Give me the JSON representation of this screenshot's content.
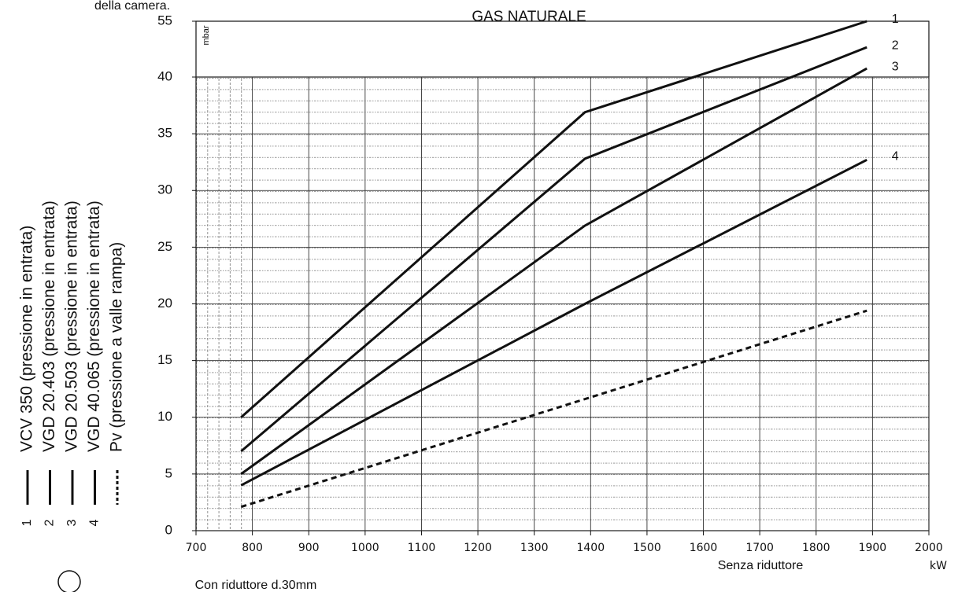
{
  "chart_data": {
    "type": "line",
    "title": "GAS NATURALE",
    "caption_fragment": "della camera.",
    "y_unit": "mbar",
    "x_unit": "kW",
    "annotations": [
      "Senza riduttore",
      "Con riduttore d.30mm"
    ],
    "xlim": [
      700,
      2000
    ],
    "xticks": [
      700,
      800,
      900,
      1000,
      1100,
      1200,
      1300,
      1400,
      1500,
      1600,
      1700,
      1800,
      1900,
      2000
    ],
    "ylim": [
      0,
      55
    ],
    "yticks": [
      0,
      5,
      10,
      15,
      20,
      25,
      30,
      35,
      40,
      55
    ],
    "grid": true,
    "series": [
      {
        "name": "VCV 350 (pressione in entrata)",
        "label": "1",
        "color": "#111111",
        "style": "solid",
        "x": [
          780,
          1390,
          1890
        ],
        "values": [
          10,
          36.9,
          55
        ]
      },
      {
        "name": "VGD 20.403 (pressione in entrata)",
        "label": "2",
        "color": "#111111",
        "style": "solid",
        "x": [
          780,
          1390,
          1890
        ],
        "values": [
          7,
          32.8,
          48
        ]
      },
      {
        "name": "VGD 20.503 (pressione in entrata)",
        "label": "3",
        "color": "#111111",
        "style": "solid",
        "x": [
          780,
          1390,
          1890
        ],
        "values": [
          5,
          26.9,
          42.3
        ]
      },
      {
        "name": "VGD 40.065 (pressione in entrata)",
        "label": "4",
        "color": "#111111",
        "style": "solid",
        "x": [
          780,
          1390,
          1890
        ],
        "values": [
          4,
          20,
          32.7
        ]
      },
      {
        "name": "Pv (pressione a valle rampa)",
        "color": "#111111",
        "style": "dashed",
        "x": [
          780,
          1890
        ],
        "values": [
          2.1,
          19.4
        ]
      }
    ]
  }
}
